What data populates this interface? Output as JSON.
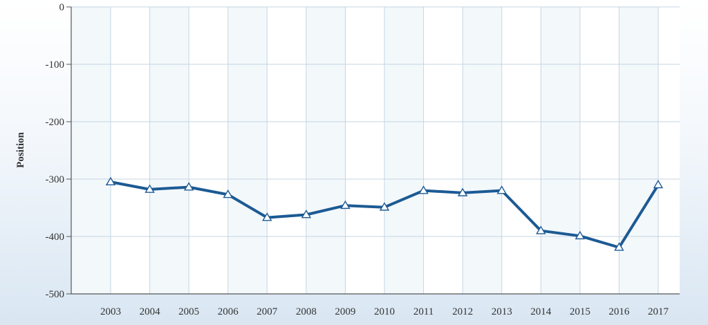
{
  "chart_data": {
    "type": "line",
    "title": "",
    "xlabel": "",
    "ylabel": "Position",
    "ylim": [
      -500,
      0
    ],
    "yticks": [
      0,
      -100,
      -200,
      -300,
      -400,
      -500
    ],
    "grid": true,
    "legend": "none",
    "x": [
      "2003",
      "2004",
      "2005",
      "2006",
      "2007",
      "2008",
      "2009",
      "2010",
      "2011",
      "2012",
      "2013",
      "2014",
      "2015",
      "2016",
      "2017"
    ],
    "series": [
      {
        "values": [
          -305,
          -318,
          -314,
          -327,
          -367,
          -362,
          -346,
          -349,
          -320,
          -324,
          -320,
          -390,
          -399,
          -419,
          -310
        ],
        "color": "#1c5a94",
        "marker": "triangle"
      }
    ]
  }
}
